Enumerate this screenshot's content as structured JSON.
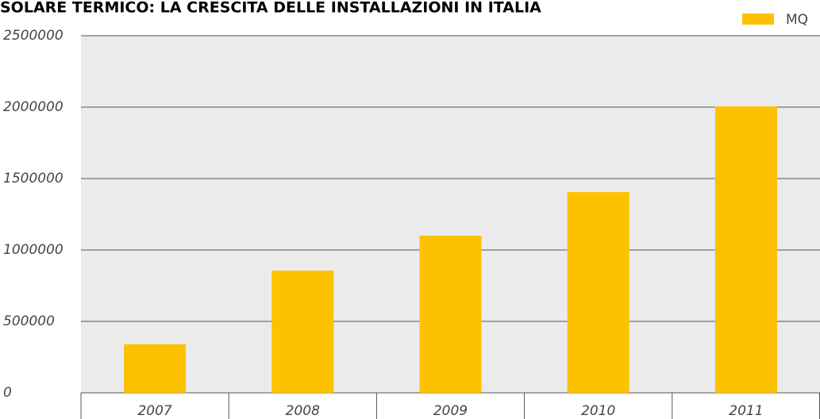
{
  "chart_data": {
    "type": "bar",
    "title": "SOLARE TERMICO: LA CRESCITA DELLE INSTALLAZIONI IN ITALIA",
    "categories": [
      "2007",
      "2008",
      "2009",
      "2010",
      "2011"
    ],
    "series": [
      {
        "name": "MQ",
        "color": "#fcc200",
        "values": [
          340000,
          855000,
          1100000,
          1405000,
          2005000
        ]
      }
    ],
    "ylim": [
      0,
      2500000
    ],
    "yticks": [
      0,
      500000,
      1000000,
      1500000,
      2000000,
      2500000
    ],
    "grid": true,
    "legend": "top-right"
  }
}
